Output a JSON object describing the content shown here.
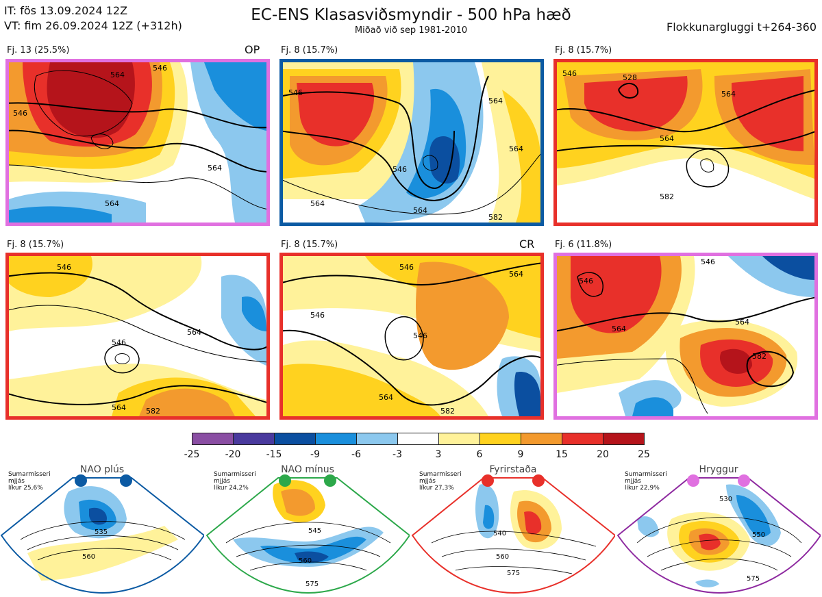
{
  "header": {
    "init_line": "IT: fös 13.09.2024 12Z",
    "valid_line": "VT: fim 26.09.2024 12Z  (+312h)",
    "title": "EC-ENS Klasasviðsmyndir - 500 hPa hæð",
    "subtitle": "Miðað við sep 1981-2010",
    "window": "Flokkunargluggi t+264-360"
  },
  "panels": [
    {
      "label": "Fj. 13 (25.5%)",
      "tag": "OP",
      "border_color": "#e070e0",
      "contours": [
        "546",
        "564",
        "564",
        "564",
        "546"
      ]
    },
    {
      "label": "Fj. 8 (15.7%)",
      "tag": "",
      "border_color": "#0b5aa3",
      "contours": [
        "546",
        "564",
        "564",
        "546",
        "564",
        "564",
        "582"
      ]
    },
    {
      "label": "Fj. 8 (15.7%)",
      "tag": "",
      "border_color": "#e8302a",
      "contours": [
        "528",
        "546",
        "564",
        "564",
        "582"
      ]
    },
    {
      "label": "Fj. 8 (15.7%)",
      "tag": "",
      "border_color": "#e8302a",
      "contours": [
        "546",
        "546",
        "564",
        "564",
        "582"
      ]
    },
    {
      "label": "Fj. 8 (15.7%)",
      "tag": "CR",
      "border_color": "#e8302a",
      "contours": [
        "546",
        "546",
        "564",
        "564",
        "546",
        "582"
      ]
    },
    {
      "label": "Fj. 6 (11.8%)",
      "tag": "",
      "border_color": "#e070e0",
      "contours": [
        "546",
        "546",
        "564",
        "564",
        "582"
      ]
    }
  ],
  "colorbar": {
    "ticks": [
      "-25",
      "-20",
      "-15",
      "-9",
      "-6",
      "-3",
      "3",
      "6",
      "9",
      "15",
      "20",
      "25"
    ],
    "colors": [
      "#8a4ea3",
      "#4a3a9e",
      "#0b4fa0",
      "#1a8fdc",
      "#8cc8ee",
      "#ffffff",
      "#fff29a",
      "#ffd21f",
      "#f39a2e",
      "#e8302a",
      "#b5141b"
    ]
  },
  "regimes": [
    {
      "name": "NAO plús",
      "info": [
        "Sumarmisseri",
        "mjjás",
        "líkur 25,6%"
      ],
      "color": "#0b5aa3",
      "contours": [
        "535",
        "560"
      ]
    },
    {
      "name": "NAO mínus",
      "info": [
        "Sumarmisseri",
        "mjjás",
        "líkur 24,2%"
      ],
      "color": "#2ca84a",
      "contours": [
        "545",
        "560",
        "575"
      ]
    },
    {
      "name": "Fyrirstaða",
      "info": [
        "Sumarmisseri",
        "mjjás",
        "líkur 27,3%"
      ],
      "color": "#e8302a",
      "contours": [
        "540",
        "560",
        "575"
      ]
    },
    {
      "name": "Hryggur",
      "info": [
        "Sumarmisseri",
        "mjjás",
        "líkur 22,9%"
      ],
      "color": "#e070e0",
      "contours": [
        "530",
        "550",
        "575"
      ]
    }
  ]
}
